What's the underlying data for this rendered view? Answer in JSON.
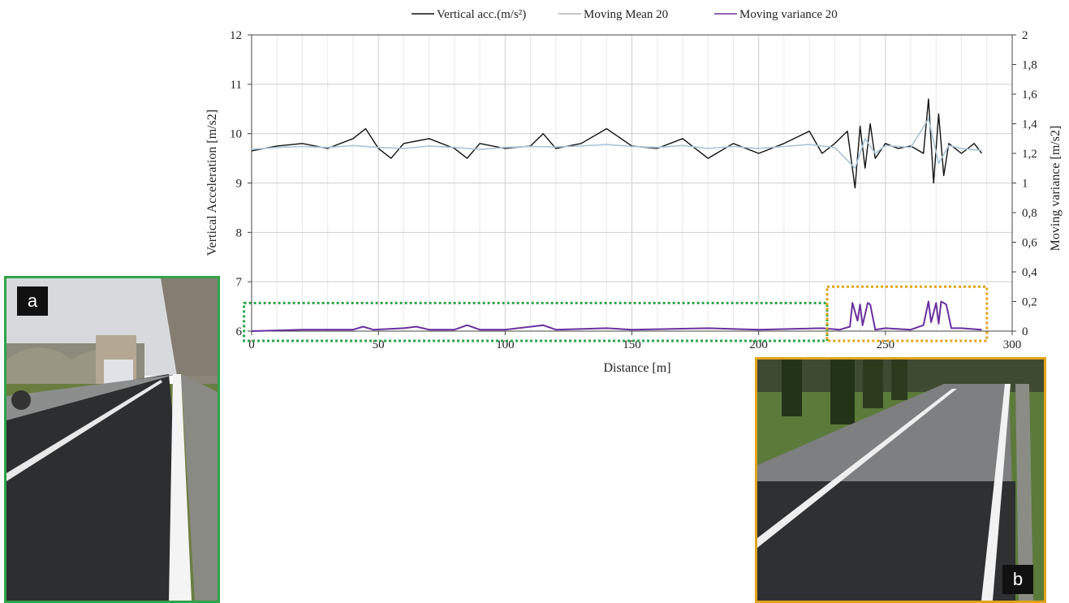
{
  "chart_data": {
    "type": "line",
    "legend": [
      "Vertical acc.(m/s²)",
      "Moving Mean 20",
      "Moving variance 20"
    ],
    "legend_position": "top-center",
    "xlabel": "Distance [m]",
    "ylabel_left": "Vertical Acceleration [m/s2]",
    "ylabel_right": "Moving variance [m/s2]",
    "xlim": [
      0,
      300
    ],
    "ylim_left": [
      6,
      12
    ],
    "ylim_right": [
      0,
      2
    ],
    "x_ticks": [
      "0",
      "50",
      "100",
      "150",
      "200",
      "250",
      "300"
    ],
    "y_ticks_left": [
      "6",
      "7",
      "8",
      "9",
      "10",
      "11",
      "12"
    ],
    "y_ticks_right": [
      "0",
      "0,2",
      "0,4",
      "0,6",
      "0,8",
      "1",
      "1,2",
      "1,4",
      "1,6",
      "1,8",
      "2"
    ],
    "grid": true,
    "colors": {
      "acc": "#111111",
      "mean": "#a9c4d8",
      "variance": "#6a2fa0",
      "smooth_box": "#2fa34a",
      "damaged_box": "#e2a41c"
    },
    "series": [
      {
        "name": "Vertical acc.(m/s²)",
        "x": [
          0,
          5,
          10,
          20,
          30,
          40,
          45,
          50,
          55,
          60,
          70,
          80,
          85,
          90,
          100,
          110,
          115,
          120,
          130,
          140,
          150,
          160,
          170,
          180,
          190,
          200,
          210,
          220,
          225,
          230,
          235,
          238,
          240,
          242,
          244,
          246,
          250,
          255,
          260,
          265,
          267,
          269,
          271,
          273,
          275,
          280,
          285,
          288
        ],
        "values": [
          9.65,
          9.7,
          9.75,
          9.8,
          9.7,
          9.9,
          10.1,
          9.7,
          9.5,
          9.8,
          9.9,
          9.7,
          9.5,
          9.8,
          9.7,
          9.75,
          10.0,
          9.7,
          9.8,
          10.1,
          9.75,
          9.7,
          9.9,
          9.5,
          9.8,
          9.6,
          9.8,
          10.05,
          9.6,
          9.8,
          10.05,
          8.9,
          10.15,
          9.3,
          10.2,
          9.5,
          9.8,
          9.7,
          9.75,
          9.6,
          10.7,
          9.0,
          10.4,
          9.15,
          9.8,
          9.6,
          9.8,
          9.6
        ]
      },
      {
        "name": "Moving Mean 20",
        "x": [
          0,
          10,
          20,
          30,
          40,
          50,
          60,
          70,
          80,
          90,
          100,
          110,
          120,
          130,
          140,
          150,
          160,
          170,
          180,
          190,
          200,
          210,
          220,
          230,
          238,
          242,
          246,
          250,
          260,
          267,
          271,
          275,
          280,
          288
        ],
        "values": [
          9.68,
          9.72,
          9.74,
          9.72,
          9.76,
          9.72,
          9.7,
          9.75,
          9.72,
          9.68,
          9.72,
          9.74,
          9.73,
          9.75,
          9.78,
          9.74,
          9.72,
          9.76,
          9.7,
          9.74,
          9.7,
          9.74,
          9.78,
          9.72,
          9.3,
          9.9,
          9.6,
          9.76,
          9.72,
          10.3,
          9.4,
          9.76,
          9.7,
          9.66
        ]
      },
      {
        "name": "Moving variance 20",
        "x": [
          0,
          20,
          40,
          44,
          48,
          60,
          65,
          70,
          80,
          85,
          90,
          100,
          115,
          120,
          140,
          150,
          180,
          200,
          225,
          232,
          236,
          237,
          239,
          240,
          241,
          243,
          244,
          246,
          250,
          260,
          265,
          267,
          268,
          270,
          271,
          272,
          274,
          276,
          280,
          288
        ],
        "values": [
          0.0,
          0.01,
          0.01,
          0.03,
          0.01,
          0.02,
          0.03,
          0.01,
          0.01,
          0.04,
          0.01,
          0.01,
          0.04,
          0.01,
          0.02,
          0.01,
          0.02,
          0.01,
          0.02,
          0.01,
          0.03,
          0.19,
          0.07,
          0.18,
          0.04,
          0.19,
          0.18,
          0.01,
          0.02,
          0.01,
          0.04,
          0.2,
          0.06,
          0.19,
          0.05,
          0.2,
          0.18,
          0.02,
          0.02,
          0.01
        ]
      }
    ],
    "annotations": [
      {
        "kind": "dotted-box",
        "color": "smooth_box",
        "x_range": [
          -3,
          227
        ],
        "y_right_range": [
          0,
          0.19
        ]
      },
      {
        "kind": "dotted-box",
        "color": "damaged_box",
        "x_range": [
          227,
          290
        ],
        "y_right_range": [
          0,
          0.3
        ]
      }
    ]
  },
  "photos": {
    "a": {
      "label": "a"
    },
    "b": {
      "label": "b"
    }
  }
}
